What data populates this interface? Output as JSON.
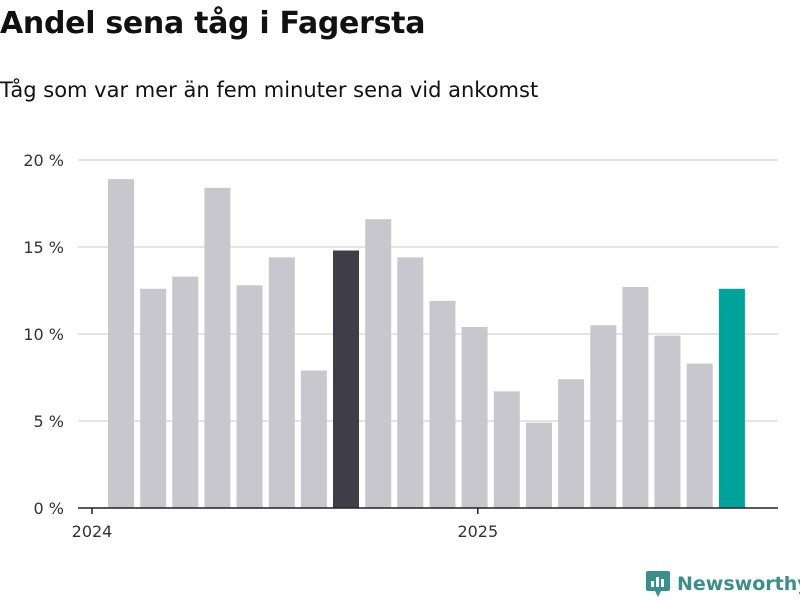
{
  "chart_data": {
    "type": "bar",
    "title": "Andel sena tåg i Fagersta",
    "subtitle": "Tåg som var mer än fem minuter sena vid ankomst",
    "xlabel": "",
    "ylabel": "",
    "ylim": [
      0,
      20
    ],
    "y_ticks": [
      {
        "value": 0,
        "label": "0 %"
      },
      {
        "value": 5,
        "label": "5 %"
      },
      {
        "value": 10,
        "label": "10 %"
      },
      {
        "value": 15,
        "label": "15 %"
      },
      {
        "value": 20,
        "label": "20 %"
      }
    ],
    "x_ticks": [
      {
        "index": 0,
        "label": "2024"
      },
      {
        "index": 12,
        "label": "2025"
      }
    ],
    "values": [
      18.9,
      12.6,
      13.3,
      18.4,
      12.8,
      14.4,
      7.9,
      14.8,
      16.6,
      14.4,
      11.9,
      10.4,
      6.7,
      4.9,
      7.4,
      10.5,
      12.7,
      9.9,
      8.3,
      12.6
    ],
    "highlight": {
      "7": "dark",
      "19": "accent"
    },
    "grid": true
  },
  "colors": {
    "bar": "#c8c7ce",
    "dark": "#3e3d48",
    "accent": "#00a399",
    "grid": "#dcdcdc",
    "axis": "#222222",
    "brand": "#3a8f8a"
  },
  "brand": {
    "name": "Newsworthy",
    "icon": "newsworthy-logo-icon"
  }
}
